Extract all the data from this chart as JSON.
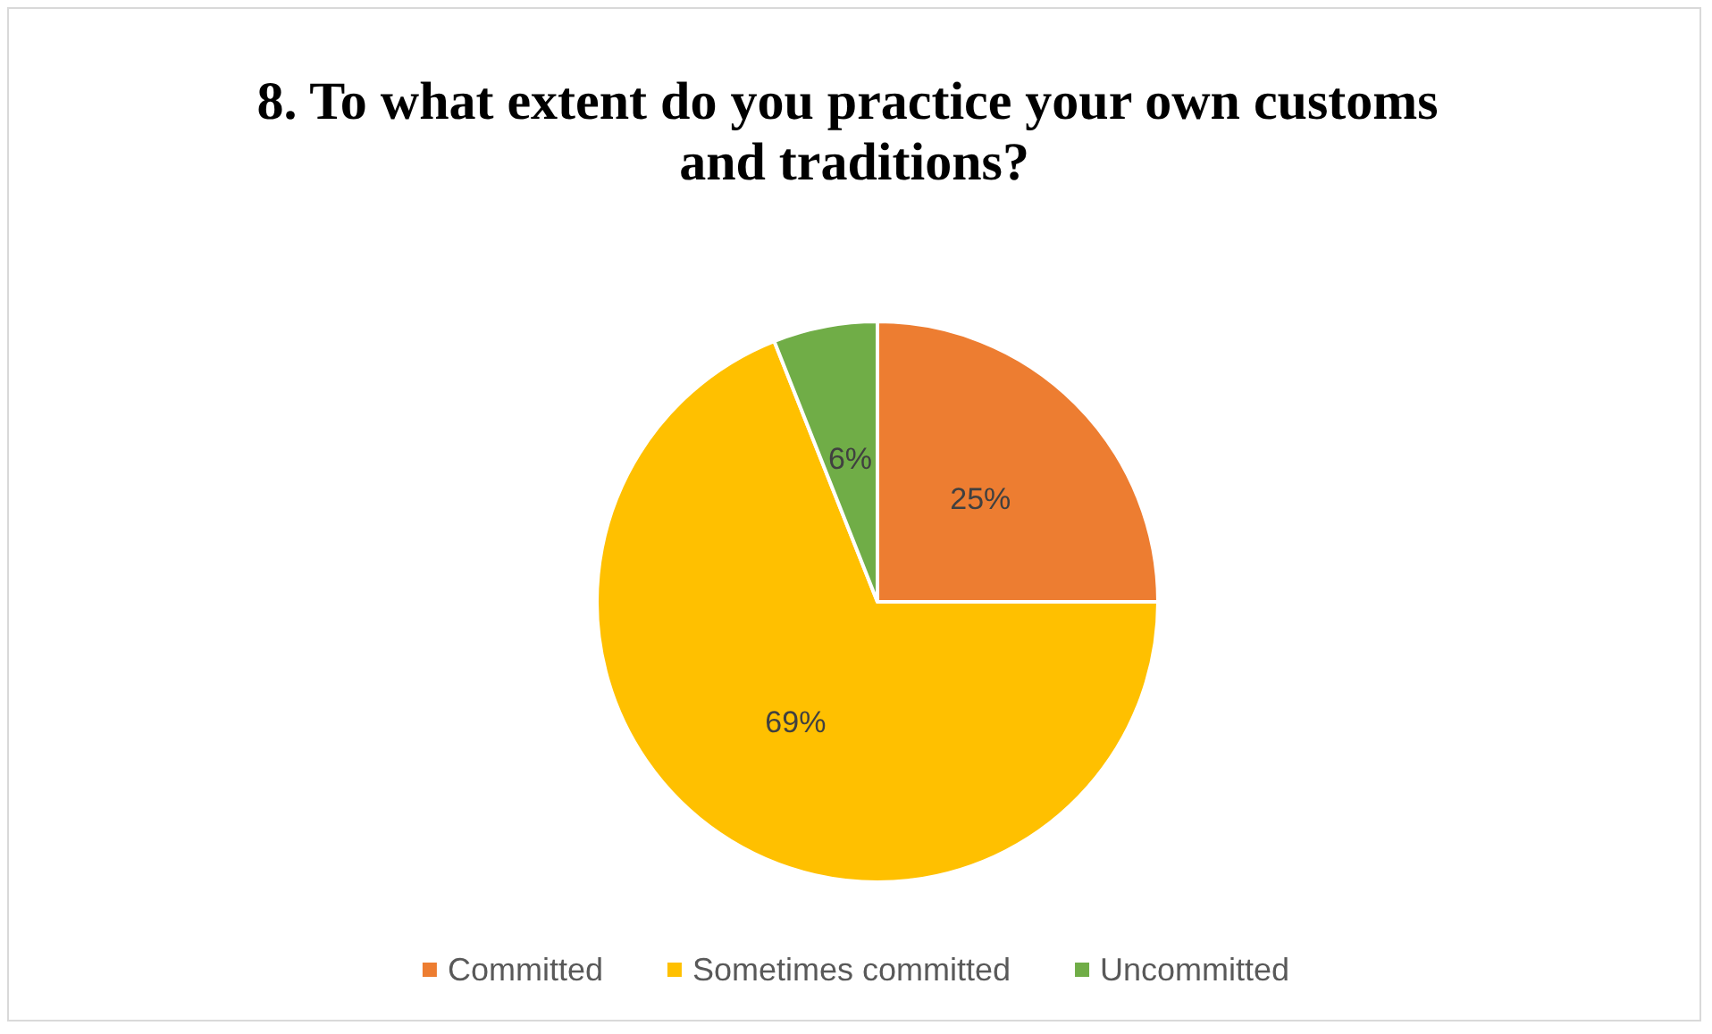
{
  "chart_data": {
    "type": "pie",
    "title": "8. To what extent do you practice your own customs and traditions?",
    "categories": [
      "Committed",
      "Sometimes committed",
      "Uncommitted"
    ],
    "values": [
      25,
      69,
      6
    ],
    "colors": [
      "#ed7d31",
      "#ffc000",
      "#70ad47"
    ],
    "value_labels": [
      "25%",
      "69%",
      "6%"
    ],
    "legend": "bottom"
  }
}
